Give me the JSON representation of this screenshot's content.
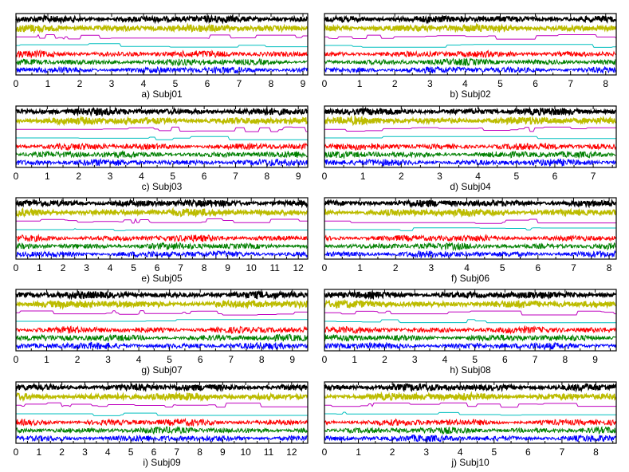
{
  "series_colors": [
    "#000000",
    "#bcbc00",
    "#bf00bf",
    "#00bfbf",
    "#ff0000",
    "#008000",
    "#0000ff"
  ],
  "chart_data": [
    {
      "type": "line",
      "caption": "a) Subj01",
      "xlim": [
        0,
        9.15
      ],
      "xticks": [
        0,
        1,
        2,
        3,
        4,
        5,
        6,
        7,
        8,
        9
      ],
      "y": "multichannel signal traces (7 channels, no y axis)",
      "grid": false
    },
    {
      "type": "line",
      "caption": "b) Subj02",
      "xlim": [
        0,
        8.3
      ],
      "xticks": [
        0,
        1,
        2,
        3,
        4,
        5,
        6,
        7,
        8
      ],
      "y": "multichannel signal traces (7 channels, no y axis)",
      "grid": false
    },
    {
      "type": "line",
      "caption": "c) Subj03",
      "xlim": [
        0,
        9.3
      ],
      "xticks": [
        0,
        1,
        2,
        3,
        4,
        5,
        6,
        7,
        8,
        9
      ],
      "y": "multichannel signal traces (7 channels, no y axis)",
      "grid": false
    },
    {
      "type": "line",
      "caption": "d) Subj04",
      "xlim": [
        0,
        7.6
      ],
      "xticks": [
        0,
        1,
        2,
        3,
        4,
        5,
        6,
        7
      ],
      "y": "multichannel signal traces (7 channels, no y axis)",
      "grid": false
    },
    {
      "type": "line",
      "caption": "e) Subj05",
      "xlim": [
        0,
        12.4
      ],
      "xticks": [
        0,
        1,
        2,
        3,
        4,
        5,
        6,
        7,
        8,
        9,
        10,
        11,
        12
      ],
      "y": "multichannel signal traces (7 channels, no y axis)",
      "grid": false
    },
    {
      "type": "line",
      "caption": "f) Subj06",
      "xlim": [
        0,
        8.2
      ],
      "xticks": [
        0,
        1,
        2,
        3,
        4,
        5,
        6,
        7,
        8
      ],
      "y": "multichannel signal traces (7 channels, no y axis)",
      "grid": false
    },
    {
      "type": "line",
      "caption": "g) Subj07",
      "xlim": [
        0,
        9.5
      ],
      "xticks": [
        0,
        1,
        2,
        3,
        4,
        5,
        6,
        7,
        8,
        9
      ],
      "y": "multichannel signal traces (7 channels, no y axis)",
      "grid": false
    },
    {
      "type": "line",
      "caption": "h) Subj08",
      "xlim": [
        0,
        9.7
      ],
      "xticks": [
        0,
        1,
        2,
        3,
        4,
        5,
        6,
        7,
        8,
        9
      ],
      "y": "multichannel signal traces (7 channels, no y axis)",
      "grid": false
    },
    {
      "type": "line",
      "caption": "i) Subj09",
      "xlim": [
        0,
        12.7
      ],
      "xticks": [
        0,
        1,
        2,
        3,
        4,
        5,
        6,
        7,
        8,
        9,
        10,
        11,
        12
      ],
      "y": "multichannel signal traces (7 channels, no y axis)",
      "grid": false
    },
    {
      "type": "line",
      "caption": "j) Subj10",
      "xlim": [
        0,
        8.6
      ],
      "xticks": [
        0,
        1,
        2,
        3,
        4,
        5,
        6,
        7,
        8
      ],
      "y": "multichannel signal traces (7 channels, no y axis)",
      "grid": false
    }
  ]
}
